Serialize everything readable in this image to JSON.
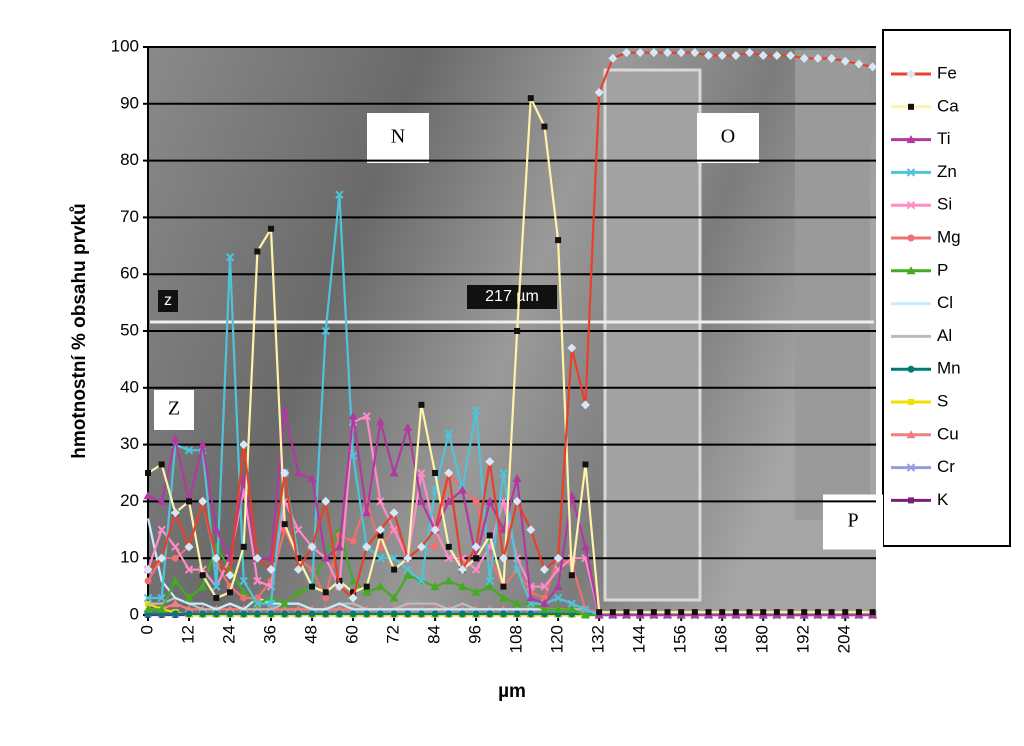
{
  "chart_data": {
    "type": "line",
    "y_label": "hmotnostní % obsahu prvků",
    "x_label": "µm",
    "xlim": [
      0,
      213
    ],
    "ylim": [
      0,
      100
    ],
    "xticks": [
      0,
      12,
      24,
      36,
      48,
      60,
      72,
      84,
      96,
      108,
      120,
      132,
      144,
      156,
      168,
      180,
      192,
      204
    ],
    "yticks": [
      0,
      10,
      20,
      30,
      40,
      50,
      60,
      70,
      80,
      90,
      100
    ],
    "grid": true,
    "legend": "right",
    "annotations": [
      "N",
      "O",
      "Z",
      "P",
      "z",
      "217 µm"
    ],
    "x": [
      0,
      4,
      8,
      12,
      16,
      20,
      24,
      28,
      32,
      36,
      40,
      44,
      48,
      52,
      56,
      60,
      64,
      68,
      72,
      76,
      80,
      84,
      88,
      92,
      96,
      100,
      104,
      108,
      112,
      116,
      120,
      124,
      128,
      132,
      136,
      140,
      144,
      148,
      152,
      156,
      160,
      164,
      168,
      172,
      176,
      180,
      184,
      188,
      192,
      196,
      200,
      204,
      208,
      212
    ],
    "series": [
      {
        "name": "Fe",
        "color": "#e8402a",
        "marker": "diamond",
        "marker_color": "#d6e8f7",
        "values": [
          8,
          10,
          18,
          12,
          20,
          10,
          7,
          30,
          10,
          8,
          25,
          8,
          12,
          20,
          5,
          3,
          12,
          15,
          18,
          10,
          12,
          15,
          25,
          8,
          12,
          27,
          10,
          20,
          15,
          8,
          10,
          47,
          37,
          92,
          98,
          99,
          99,
          99,
          99,
          99,
          99,
          98.5,
          98.5,
          98.5,
          99,
          98.5,
          98.5,
          98.5,
          98,
          98,
          98,
          97.5,
          97,
          96.5
        ]
      },
      {
        "name": "Ca",
        "color": "#fff3a8",
        "marker": "square",
        "marker_color": "#111111",
        "values": [
          25,
          26.5,
          18,
          20,
          7,
          3,
          4,
          12,
          64,
          68,
          16,
          10,
          5,
          4,
          6,
          4,
          5,
          14,
          8,
          10,
          37,
          25,
          12,
          8,
          10,
          14,
          5,
          50,
          91,
          86,
          66,
          7,
          26.5,
          0.5,
          0.5,
          0.5,
          0.5,
          0.5,
          0.5,
          0.5,
          0.5,
          0.5,
          0.5,
          0.5,
          0.5,
          0.5,
          0.5,
          0.5,
          0.5,
          0.5,
          0.5,
          0.5,
          0.5,
          0.5
        ]
      },
      {
        "name": "Ti",
        "color": "#b03aa0",
        "marker": "triangle",
        "marker_color": "#b03aa0",
        "values": [
          21,
          20,
          31,
          20,
          30,
          15,
          10,
          24,
          10,
          10,
          36,
          25,
          24,
          10,
          12,
          35,
          18,
          34,
          25,
          33,
          20,
          15,
          20,
          22,
          10,
          20,
          15,
          24,
          3,
          2,
          5,
          21,
          12,
          0,
          0,
          0,
          0,
          0,
          0,
          0,
          0,
          0,
          0,
          0,
          0,
          0,
          0,
          0,
          0,
          0,
          0,
          0,
          0,
          0
        ]
      },
      {
        "name": "Zn",
        "color": "#4fc3d9",
        "marker": "x",
        "marker_color": "#4fc3d9",
        "values": [
          3,
          3,
          30,
          29,
          29,
          5,
          63,
          6,
          2,
          2,
          25,
          10,
          5,
          50,
          74,
          28,
          12,
          10,
          10,
          8,
          6,
          22,
          32,
          22,
          36,
          6,
          25,
          8,
          2,
          2,
          3,
          2,
          1,
          0,
          0,
          0,
          0,
          0,
          0,
          0,
          0,
          0,
          0,
          0,
          0,
          0,
          0,
          0,
          0,
          0,
          0,
          0,
          0,
          0
        ]
      },
      {
        "name": "Si",
        "color": "#ff8cc8",
        "marker": "x",
        "marker_color": "#ff8cc8",
        "values": [
          8,
          15,
          12,
          8,
          8,
          5,
          10,
          22,
          6,
          5,
          20,
          15,
          12,
          10,
          5,
          34,
          35,
          20,
          15,
          10,
          25,
          15,
          10,
          10,
          8,
          12,
          20,
          10,
          5,
          5,
          8,
          10,
          10,
          0,
          0,
          0,
          0,
          0,
          0,
          0,
          0,
          0,
          0,
          0,
          0,
          0,
          0,
          0,
          0,
          0,
          0,
          0,
          0,
          0
        ]
      },
      {
        "name": "Mg",
        "color": "#f07070",
        "marker": "circle",
        "marker_color": "#f07070",
        "values": [
          6,
          10,
          10,
          12,
          20,
          9,
          5,
          3,
          3,
          6,
          15,
          10,
          8,
          3,
          14,
          13,
          20,
          12,
          15,
          10,
          12,
          12,
          25,
          22,
          20,
          10,
          5,
          8,
          4,
          3,
          10,
          9,
          1,
          0.5,
          0.5,
          0.5,
          0.5,
          0.5,
          0.5,
          0.5,
          0.5,
          0.5,
          0.5,
          0.5,
          0.5,
          0.5,
          0.5,
          0.5,
          0.5,
          0.5,
          0.5,
          0.5,
          0.5,
          0.5
        ]
      },
      {
        "name": "P",
        "color": "#44aa22",
        "marker": "triangle",
        "marker_color": "#44aa22",
        "values": [
          1,
          1,
          6,
          3,
          5,
          12,
          8,
          4,
          2,
          3,
          2,
          4,
          5,
          11,
          15,
          6,
          4,
          5,
          3,
          7,
          6,
          5,
          6,
          5,
          4,
          5,
          3,
          2,
          2,
          1,
          1,
          1,
          0,
          0,
          0,
          0,
          0,
          0,
          0,
          0,
          0,
          0,
          0,
          0,
          0,
          0,
          0,
          0,
          0,
          0,
          0,
          0,
          0,
          0
        ]
      },
      {
        "name": "Cl",
        "color": "#c8ecff",
        "marker": "none",
        "marker_color": "#c8ecff",
        "values": [
          17,
          6,
          3,
          2,
          2,
          1,
          2,
          1,
          3,
          2,
          2,
          2,
          1,
          1,
          2,
          1,
          1,
          1,
          1,
          1,
          1,
          1,
          1,
          1,
          1,
          1,
          1,
          1,
          1,
          1,
          1,
          1,
          0,
          0,
          0,
          0,
          0,
          0,
          0,
          0,
          0,
          0,
          0,
          0,
          0,
          0,
          0,
          0,
          0,
          0,
          0,
          0,
          0,
          0
        ]
      },
      {
        "name": "Al",
        "color": "#bbbbbb",
        "marker": "none",
        "marker_color": "#bbbbbb",
        "values": [
          2,
          2,
          3,
          2,
          1,
          1,
          2,
          1,
          1,
          1,
          2,
          2,
          1,
          1,
          2,
          2,
          1,
          1,
          1,
          2,
          2,
          2,
          1,
          2,
          1,
          1,
          1,
          1,
          1,
          1,
          1,
          1,
          1,
          0,
          0,
          0,
          0,
          0,
          0,
          0,
          0,
          0,
          0,
          0,
          0,
          0,
          0,
          0,
          0,
          0,
          0,
          0,
          0,
          0
        ]
      },
      {
        "name": "Mn",
        "color": "#007a7a",
        "marker": "circle",
        "marker_color": "#007a7a",
        "values": [
          0.2,
          0.2,
          0.2,
          0.2,
          0.2,
          0.2,
          0.2,
          0.2,
          0.2,
          0.2,
          0.2,
          0.2,
          0.2,
          0.2,
          0.2,
          0.2,
          0.2,
          0.2,
          0.2,
          0.2,
          0.2,
          0.2,
          0.2,
          0.2,
          0.2,
          0.2,
          0.2,
          0.2,
          0.2,
          0.2,
          0.2,
          0.2,
          0.2,
          0.2,
          0.2,
          0.2,
          0.2,
          0.2,
          0.2,
          0.2,
          0.2,
          0.2,
          0.2,
          0.2,
          0.2,
          0.2,
          0.2,
          0.2,
          0.2,
          0.2,
          0.2,
          0.2,
          0.2,
          0.2
        ]
      },
      {
        "name": "S",
        "color": "#f0e000",
        "marker": "square",
        "marker_color": "#f0e000",
        "values": [
          2,
          1,
          0.5,
          0,
          0,
          0,
          0,
          0,
          0,
          0,
          0,
          0,
          0,
          0,
          0,
          0,
          0,
          0,
          0,
          0,
          0,
          0,
          0,
          0,
          0,
          0,
          0,
          0,
          0,
          0,
          0,
          0,
          0,
          0,
          0,
          0,
          0,
          0,
          0,
          0,
          0,
          0,
          0,
          0,
          0,
          0,
          0,
          0,
          0,
          0,
          0,
          0,
          0,
          0
        ]
      },
      {
        "name": "Cu",
        "color": "#f08080",
        "marker": "triangle",
        "marker_color": "#f08080",
        "values": [
          1,
          1,
          2,
          1,
          1,
          1,
          1,
          1,
          1,
          1,
          1,
          1,
          1,
          1,
          1,
          1,
          1,
          1,
          1,
          1,
          1,
          1,
          1,
          1,
          1,
          1,
          1,
          1,
          1,
          1,
          1,
          1,
          1,
          0.5,
          0.5,
          0.5,
          0.5,
          0.5,
          0.5,
          0.5,
          0.5,
          0.5,
          0.5,
          0.5,
          0.5,
          0.5,
          0.5,
          0.5,
          0.5,
          0.5,
          0.5,
          0.5,
          0.5,
          0.5
        ]
      },
      {
        "name": "Cr",
        "color": "#9999dd",
        "marker": "x",
        "marker_color": "#9999dd",
        "values": [
          0.2,
          0.2,
          0.2,
          0.2,
          0.2,
          0.2,
          0.2,
          0.2,
          0.2,
          0.2,
          0.2,
          0.2,
          0.2,
          0.2,
          0.2,
          0.2,
          0.2,
          0.2,
          0.2,
          0.2,
          0.2,
          0.2,
          0.2,
          0.2,
          0.2,
          0.2,
          0.2,
          0.2,
          0.2,
          0.2,
          0.2,
          0.2,
          0.2,
          0.2,
          0.2,
          0.2,
          0.2,
          0.2,
          0.2,
          0.2,
          0.2,
          0.2,
          0.2,
          0.2,
          0.2,
          0.2,
          0.2,
          0.2,
          0.2,
          0.2,
          0.2,
          0.2,
          0.2,
          0.2
        ]
      },
      {
        "name": "K",
        "color": "#7a1f7a",
        "marker": "square",
        "marker_color": "#7a1f7a",
        "values": [
          0,
          0,
          0,
          0,
          0,
          0,
          0,
          0,
          0,
          0,
          0,
          0,
          0,
          0,
          0,
          0,
          0,
          0,
          0,
          0,
          0,
          0,
          0,
          0,
          0,
          0,
          0,
          0,
          0,
          0,
          0,
          0,
          0,
          0,
          0,
          0,
          0,
          0,
          0,
          0,
          0,
          0,
          0,
          0,
          0,
          0,
          0,
          0,
          0,
          0,
          0,
          0,
          0,
          0
        ]
      }
    ]
  }
}
